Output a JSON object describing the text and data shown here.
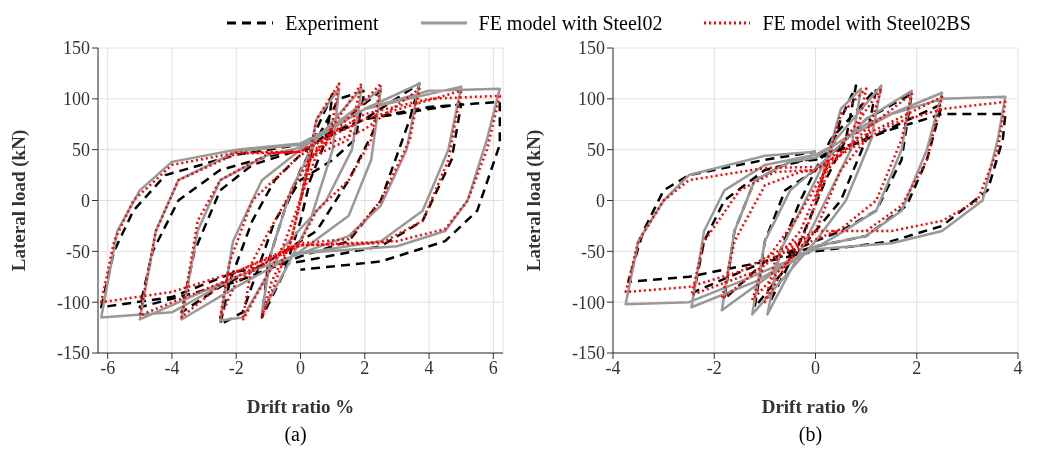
{
  "chart_data": [
    {
      "type": "line",
      "xlabel": "Drift ratio %",
      "ylabel": "Lateral load (kN)",
      "annotations": [
        "(a)"
      ],
      "xlim": [
        -6.3,
        6.3
      ],
      "xticks": [
        -6,
        -4,
        -2,
        0,
        2,
        4,
        6
      ],
      "ylim": [
        -150,
        150
      ],
      "yticks": [
        -150,
        -100,
        -50,
        0,
        50,
        100,
        150
      ],
      "grid": true,
      "legend": "top",
      "marker": "none",
      "series": [
        {
          "name": "Experiment",
          "color": "#000000",
          "line_style": "dashed",
          "x": [
            0,
            0.5,
            1.0,
            0.8,
            0.3,
            0,
            -0.5,
            -1.2,
            -1.0,
            -0.5,
            0,
            0.5,
            1.2,
            2.0,
            1.7,
            1.0,
            0,
            -0.8,
            -1.8,
            -2.5,
            -2.2,
            -1.5,
            -0.8,
            0,
            1.0,
            2.5,
            2.3,
            1.5,
            0.5,
            -1.0,
            -2.5,
            -3.7,
            -3.3,
            -2.5,
            -1.5,
            0,
            2,
            3.7,
            3.4,
            2.5,
            1.5,
            0,
            -2,
            -5.0,
            -4.6,
            -3.8,
            -2.5,
            0,
            2,
            4,
            5.0,
            4.7,
            3.8,
            2.5,
            0,
            -2,
            -4,
            -6.2,
            -5.8,
            -5.2,
            -4.2,
            -2,
            0,
            2,
            4,
            6.2,
            6.2,
            5.5,
            4.5,
            2.5,
            0
          ],
          "values": [
            0,
            70,
            105,
            60,
            20,
            -20,
            -70,
            -115,
            -60,
            -10,
            30,
            60,
            100,
            108,
            60,
            40,
            20,
            -20,
            -110,
            -122,
            -80,
            -20,
            20,
            45,
            70,
            108,
            70,
            20,
            -30,
            -60,
            -85,
            -110,
            -50,
            10,
            35,
            50,
            80,
            115,
            80,
            0,
            -40,
            -55,
            -80,
            -105,
            -50,
            0,
            30,
            52,
            80,
            90,
            95,
            40,
            -20,
            -45,
            -60,
            -70,
            -95,
            -105,
            -50,
            -10,
            25,
            45,
            55,
            80,
            92,
            97,
            55,
            -10,
            -40,
            -60,
            -68
          ]
        },
        {
          "name": "FE model with Steel02",
          "color": "#999999",
          "line_style": "solid",
          "x": [
            0,
            0.5,
            1.2,
            1.0,
            0.3,
            -0.5,
            -1.2,
            -0.9,
            -0.3,
            0.5,
            1.9,
            1.6,
            0.8,
            -0.5,
            -1.8,
            -2.5,
            -2.1,
            -1.2,
            0,
            1.5,
            2.5,
            2.2,
            1.5,
            0,
            -2,
            -3.7,
            -3.2,
            -2.5,
            -1,
            0,
            2,
            3.7,
            3.3,
            2.5,
            1.5,
            0,
            -2,
            -5.0,
            -4.5,
            -3.8,
            -2,
            0,
            2,
            5.0,
            4.6,
            3.8,
            2.5,
            0,
            -2,
            -4,
            -6.2,
            -5.7,
            -5.0,
            -4,
            -2,
            0,
            2,
            4,
            6.2,
            5.8,
            5.2,
            4.5,
            3,
            0
          ],
          "values": [
            0,
            80,
            110,
            50,
            -20,
            -70,
            -110,
            -50,
            10,
            60,
            110,
            50,
            0,
            -45,
            -115,
            -118,
            -40,
            20,
            50,
            85,
            110,
            40,
            -15,
            -50,
            -85,
            -117,
            -30,
            20,
            45,
            52,
            90,
            115,
            50,
            -5,
            -35,
            -52,
            -75,
            -117,
            -30,
            20,
            48,
            55,
            90,
            112,
            50,
            -10,
            -40,
            -52,
            -75,
            -110,
            -115,
            -30,
            10,
            38,
            50,
            56,
            90,
            108,
            110,
            60,
            0,
            -30,
            -45,
            -52
          ]
        },
        {
          "name": "FE model with Steel02BS",
          "color": "#ff0000",
          "line_style": "dotted",
          "x": [
            0,
            0.5,
            1.2,
            0.9,
            0.3,
            -0.3,
            -1.2,
            -0.9,
            -0.3,
            0.3,
            1.9,
            1.5,
            0.5,
            -0.5,
            -1.8,
            -1.5,
            -0.8,
            0.3,
            2.5,
            2.2,
            1.5,
            0.5,
            0,
            -2,
            -2.5,
            -2.2,
            -1.5,
            -0.5,
            0,
            2,
            3.7,
            3.4,
            2.5,
            1.5,
            0,
            -2,
            -3.7,
            -3.2,
            -2.5,
            -1,
            0,
            2,
            5.0,
            4.6,
            3.8,
            2.5,
            0,
            -2,
            -5.0,
            -4.5,
            -3.8,
            -2,
            0,
            2,
            4,
            6.2,
            5.8,
            5.2,
            4.5,
            3,
            0,
            -2,
            -4,
            -6.2,
            -5.8,
            -5.2,
            -4,
            -2,
            0
          ],
          "values": [
            0,
            80,
            115,
            60,
            40,
            -40,
            -115,
            -80,
            -40,
            40,
            115,
            60,
            45,
            -42,
            -118,
            -60,
            -20,
            42,
            115,
            60,
            20,
            -10,
            -40,
            -80,
            -115,
            -60,
            0,
            30,
            45,
            70,
            110,
            60,
            0,
            -38,
            -42,
            -70,
            -115,
            -20,
            20,
            46,
            48,
            80,
            108,
            40,
            -20,
            -42,
            -44,
            -75,
            -113,
            -30,
            20,
            46,
            48,
            85,
            100,
            103,
            50,
            0,
            -28,
            -40,
            -44,
            -70,
            -90,
            -100,
            -40,
            0,
            35,
            47,
            48
          ]
        }
      ]
    },
    {
      "type": "line",
      "xlabel": "Drift ratio %",
      "ylabel": "Lateral load (kN)",
      "annotations": [
        "(b)"
      ],
      "xlim": [
        -4,
        4
      ],
      "xticks": [
        -4,
        -2,
        0,
        2,
        4
      ],
      "ylim": [
        -150,
        150
      ],
      "yticks": [
        -150,
        -100,
        -50,
        0,
        50,
        100,
        150
      ],
      "grid": true,
      "marker": "none",
      "series": [
        {
          "color": "#000000",
          "line_style": "dashed",
          "x": [
            0,
            0.5,
            0.8,
            0.6,
            0.2,
            -0.3,
            -0.9,
            -0.7,
            -0.3,
            0.3,
            1.2,
            1.0,
            0.5,
            0,
            -1.2,
            -1.0,
            -0.6,
            0,
            1.0,
            1.9,
            1.7,
            1.2,
            0.5,
            -1,
            -1.8,
            -1.6,
            -1.2,
            -0.5,
            0,
            1,
            2.5,
            2.2,
            1.8,
            1,
            0,
            -1,
            -2.4,
            -2.2,
            -1.8,
            -1,
            0,
            1.5,
            2.5,
            3.75,
            3.7,
            3.4,
            2.5,
            1.5,
            0,
            -1,
            -2.5,
            -3.7,
            -3.4,
            -3.0,
            -2.5,
            -1,
            0
          ],
          "values": [
            0,
            80,
            113,
            60,
            20,
            -40,
            -100,
            -50,
            0,
            60,
            110,
            60,
            0,
            -30,
            -105,
            -40,
            10,
            30,
            80,
            105,
            40,
            -10,
            -30,
            -60,
            -97,
            -30,
            20,
            38,
            40,
            60,
            95,
            40,
            -5,
            -35,
            -45,
            -60,
            -90,
            -40,
            0,
            30,
            42,
            70,
            85,
            85,
            60,
            10,
            -25,
            -40,
            -50,
            -60,
            -75,
            -80,
            -30,
            10,
            25,
            40,
            48
          ]
        },
        {
          "color": "#999999",
          "line_style": "solid",
          "x": [
            0,
            0.5,
            0.9,
            0.7,
            0.2,
            -0.4,
            -0.95,
            -0.7,
            -0.2,
            0.4,
            1.3,
            1.1,
            0.6,
            0,
            -1.25,
            -1.0,
            -0.5,
            0.2,
            1.0,
            1.9,
            1.7,
            1.2,
            0.4,
            -0.8,
            -1.85,
            -1.6,
            -1.2,
            -0.5,
            0,
            1,
            2.5,
            2.2,
            1.7,
            1,
            0,
            -1.2,
            -2.45,
            -2.2,
            -1.8,
            -1,
            0,
            1.5,
            2.5,
            3.75,
            3.6,
            3.3,
            2.5,
            1.5,
            0,
            -1.5,
            -2.5,
            -3.75,
            -3.5,
            -3.0,
            -2.5,
            -1,
            0
          ],
          "values": [
            0,
            90,
            110,
            50,
            0,
            -60,
            -112,
            -50,
            0,
            60,
            113,
            60,
            0,
            -40,
            -112,
            -40,
            10,
            40,
            80,
            108,
            50,
            -10,
            -35,
            -70,
            -108,
            -30,
            20,
            38,
            42,
            75,
            106,
            50,
            -10,
            -35,
            -45,
            -80,
            -105,
            -30,
            10,
            35,
            45,
            85,
            100,
            102,
            60,
            0,
            -30,
            -42,
            -48,
            -80,
            -100,
            -102,
            -40,
            0,
            25,
            44,
            48
          ]
        },
        {
          "color": "#ff0000",
          "line_style": "dotted",
          "x": [
            0,
            0.5,
            1.0,
            0.8,
            0.3,
            -0.2,
            -1.0,
            -0.8,
            -0.3,
            0.3,
            1.3,
            1.0,
            0.5,
            0,
            -1.25,
            -1.0,
            -0.4,
            0.2,
            1.0,
            1.9,
            1.7,
            1.2,
            0.5,
            -0.8,
            -1.85,
            -1.6,
            -1.0,
            -0.3,
            0,
            1,
            2.5,
            2.2,
            1.7,
            1,
            0,
            -1.2,
            -2.45,
            -2.2,
            -1.5,
            -0.8,
            0,
            1.5,
            2.5,
            3.75,
            3.6,
            3.2,
            2.5,
            1.5,
            0,
            -1.5,
            -2.5,
            -3.75,
            -3.5,
            -3.0,
            -2.5,
            -1,
            0
          ],
          "values": [
            0,
            85,
            110,
            60,
            35,
            -30,
            -100,
            -60,
            -30,
            40,
            110,
            60,
            30,
            -30,
            -98,
            -60,
            -20,
            30,
            70,
            105,
            60,
            0,
            -28,
            -55,
            -97,
            -40,
            15,
            28,
            30,
            65,
            102,
            40,
            -5,
            -30,
            -30,
            -70,
            -93,
            -40,
            10,
            28,
            30,
            75,
            90,
            97,
            50,
            0,
            -20,
            -30,
            -30,
            -70,
            -85,
            -90,
            -40,
            0,
            20,
            32,
            33
          ]
        }
      ]
    }
  ]
}
